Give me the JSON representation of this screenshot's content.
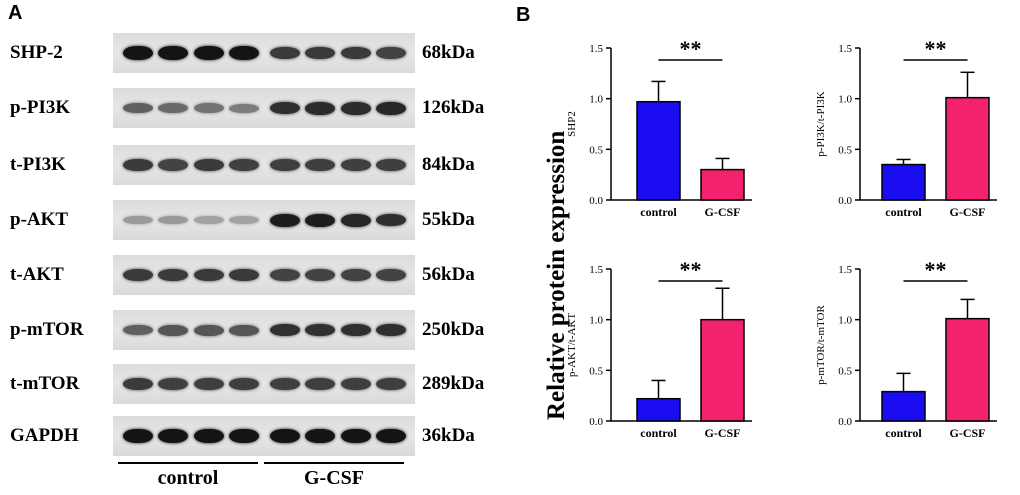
{
  "panel_a": {
    "label": "A",
    "blots": [
      {
        "name": "SHP-2",
        "size": "68kDa",
        "intensity": [
          0.95,
          0.95,
          0.95,
          0.95,
          0.75,
          0.75,
          0.75,
          0.7
        ]
      },
      {
        "name": "p-PI3K",
        "size": "126kDa",
        "intensity": [
          0.55,
          0.5,
          0.45,
          0.4,
          0.8,
          0.82,
          0.82,
          0.85
        ]
      },
      {
        "name": "t-PI3K",
        "size": "84kDa",
        "intensity": [
          0.75,
          0.7,
          0.75,
          0.72,
          0.72,
          0.72,
          0.72,
          0.72
        ]
      },
      {
        "name": "p-AKT",
        "size": "55kDa",
        "intensity": [
          0.25,
          0.25,
          0.2,
          0.2,
          0.9,
          0.9,
          0.85,
          0.8
        ]
      },
      {
        "name": "t-AKT",
        "size": "56kDa",
        "intensity": [
          0.75,
          0.75,
          0.75,
          0.75,
          0.7,
          0.7,
          0.7,
          0.7
        ]
      },
      {
        "name": "p-mTOR",
        "size": "250kDa",
        "intensity": [
          0.55,
          0.6,
          0.6,
          0.6,
          0.8,
          0.8,
          0.8,
          0.8
        ]
      },
      {
        "name": "t-mTOR",
        "size": "289kDa",
        "intensity": [
          0.75,
          0.72,
          0.72,
          0.72,
          0.72,
          0.72,
          0.72,
          0.72
        ]
      },
      {
        "name": "GAPDH",
        "size": "36kDa",
        "intensity": [
          0.95,
          0.95,
          0.95,
          0.95,
          0.95,
          0.95,
          0.95,
          0.95
        ]
      }
    ],
    "groups": [
      "control",
      "G-CSF"
    ]
  },
  "panel_b": {
    "label": "B",
    "shared_ylabel": "Relative protein expression"
  },
  "chart_data": [
    {
      "type": "bar",
      "categories": [
        "control",
        "G-CSF"
      ],
      "values": [
        0.97,
        0.3
      ],
      "errors": [
        0.2,
        0.11
      ],
      "ylabel": "SHP2",
      "ylim": [
        0,
        1.5
      ],
      "yticks": [
        "0.0",
        "0.5",
        "1.0",
        "1.5"
      ],
      "significance": "**",
      "colors": [
        "#1a0df2",
        "#f2226e"
      ]
    },
    {
      "type": "bar",
      "categories": [
        "control",
        "G-CSF"
      ],
      "values": [
        0.35,
        1.01
      ],
      "errors": [
        0.05,
        0.25
      ],
      "ylabel": "p-PI3K/t-PI3K",
      "ylim": [
        0,
        1.5
      ],
      "yticks": [
        "0.0",
        "0.5",
        "1.0",
        "1.5"
      ],
      "significance": "**",
      "colors": [
        "#1a0df2",
        "#f2226e"
      ]
    },
    {
      "type": "bar",
      "categories": [
        "control",
        "G-CSF"
      ],
      "values": [
        0.22,
        1.0
      ],
      "errors": [
        0.18,
        0.31
      ],
      "ylabel": "p-AKT/t-AKT",
      "ylim": [
        0,
        1.5
      ],
      "yticks": [
        "0.0",
        "0.5",
        "1.0",
        "1.5"
      ],
      "significance": "**",
      "colors": [
        "#1a0df2",
        "#f2226e"
      ]
    },
    {
      "type": "bar",
      "categories": [
        "control",
        "G-CSF"
      ],
      "values": [
        0.29,
        1.01
      ],
      "errors": [
        0.18,
        0.19
      ],
      "ylabel": "p-mTOR/t-mTOR",
      "ylim": [
        0,
        1.5
      ],
      "yticks": [
        "0.0",
        "0.5",
        "1.0",
        "1.5"
      ],
      "significance": "**",
      "colors": [
        "#1a0df2",
        "#f2226e"
      ]
    }
  ]
}
